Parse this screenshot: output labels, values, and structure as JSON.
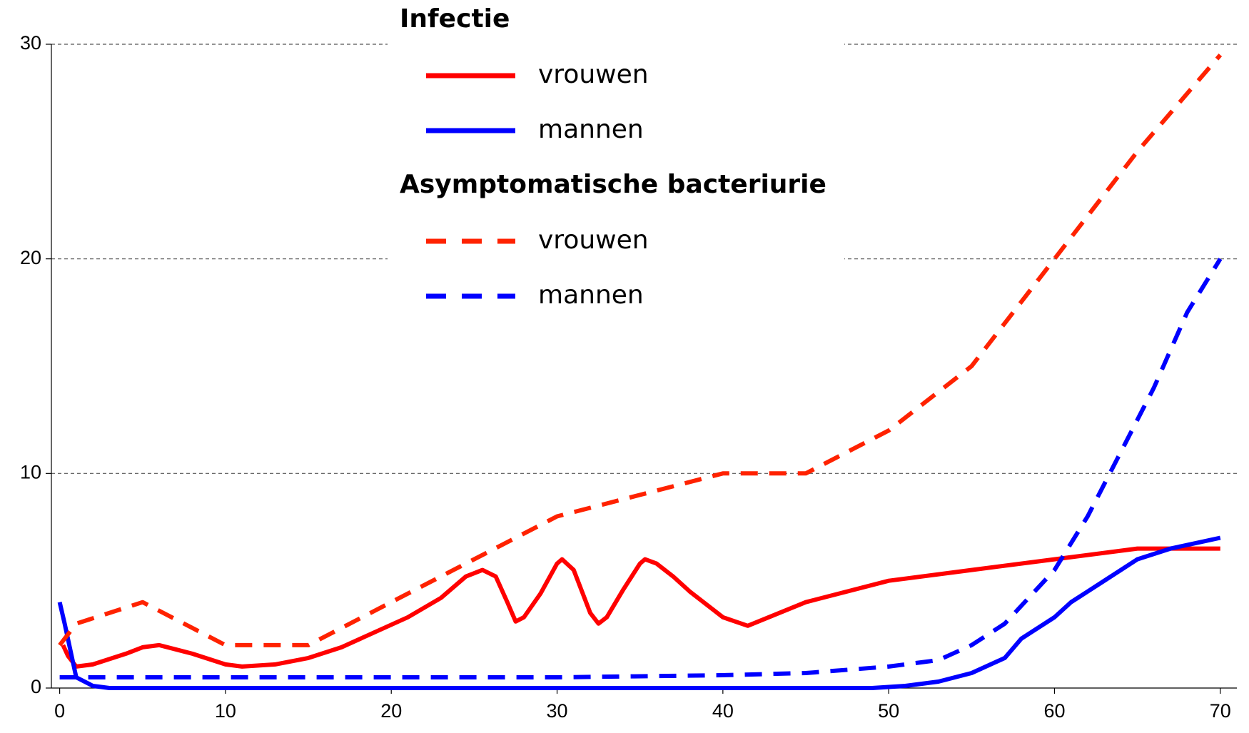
{
  "chart_data": {
    "type": "line",
    "xlim": [
      -0.5,
      71
    ],
    "xticks": [
      0,
      10,
      20,
      30,
      40,
      50,
      60,
      70
    ],
    "ylim": [
      0,
      30
    ],
    "yticks": [
      0,
      10,
      20,
      30
    ],
    "grid": true,
    "series_groups": [
      {
        "title": "Infectie",
        "series": [
          {
            "name": "vrouwen",
            "color": "#ff0000",
            "style": "solid",
            "x": [
              0.2,
              0.5,
              1,
              2,
              4,
              5,
              6,
              8,
              10,
              11,
              13,
              15,
              17,
              19,
              21,
              23,
              24.5,
              25.5,
              26.3,
              27,
              27.5,
              28,
              29,
              30,
              30.3,
              31,
              32,
              32.5,
              33,
              34,
              35,
              35.3,
              36,
              37,
              38,
              40,
              41.5,
              45,
              50,
              55,
              60,
              65,
              70
            ],
            "values": [
              2,
              1.5,
              1,
              1.1,
              1.6,
              1.9,
              2,
              1.6,
              1.1,
              1,
              1.1,
              1.4,
              1.9,
              2.6,
              3.3,
              4.2,
              5.2,
              5.5,
              5.2,
              4,
              3.1,
              3.3,
              4.4,
              5.8,
              6,
              5.5,
              3.5,
              3,
              3.3,
              4.6,
              5.8,
              6,
              5.8,
              5.2,
              4.5,
              3.3,
              2.9,
              4,
              5,
              5.5,
              6,
              6.5,
              6.5
            ]
          },
          {
            "name": "mannen",
            "color": "#0000ff",
            "style": "solid",
            "x": [
              0,
              0.3,
              1,
              2,
              3,
              49,
              51,
              53,
              55,
              57,
              58,
              60,
              61,
              63,
              65,
              67,
              70
            ],
            "values": [
              4,
              3,
              0.5,
              0.1,
              0,
              0,
              0.1,
              0.3,
              0.7,
              1.4,
              2.3,
              3.3,
              4,
              5,
              6,
              6.5,
              7
            ]
          }
        ]
      },
      {
        "title": "Asymptomatische bacteriurie",
        "series": [
          {
            "name": "vrouwen",
            "color": "#ff2200",
            "style": "dashed",
            "x": [
              0,
              0.3,
              1,
              5,
              10,
              15,
              20,
              25,
              30,
              35,
              40,
              45,
              50,
              55,
              60,
              65,
              70
            ],
            "values": [
              2,
              2.3,
              3,
              4,
              2,
              2,
              4,
              6,
              8,
              9,
              10,
              10,
              12,
              15,
              20,
              25,
              29.5
            ]
          },
          {
            "name": "mannen",
            "color": "#0000ff",
            "style": "dashed",
            "x": [
              0,
              10,
              20,
              30,
              40,
              45,
              50,
              53,
              55,
              57,
              60,
              62,
              64,
              66,
              68,
              70
            ],
            "values": [
              0.5,
              0.5,
              0.5,
              0.5,
              0.6,
              0.7,
              1,
              1.3,
              2,
              3,
              5.5,
              8,
              11,
              14,
              17.5,
              20
            ]
          }
        ]
      }
    ]
  }
}
